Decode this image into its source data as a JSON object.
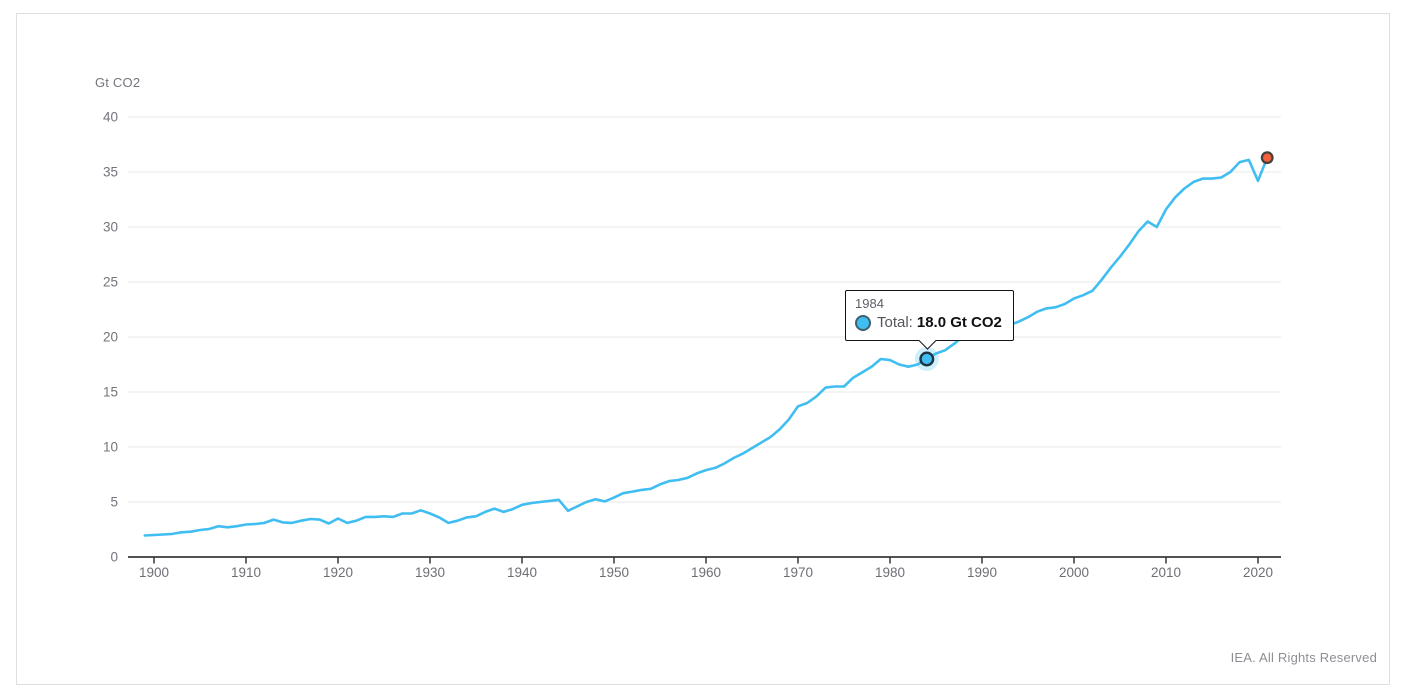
{
  "page": {
    "footer": "IEA. All Rights Reserved"
  },
  "tooltip": {
    "year_label": "1984",
    "series_label": "Total:",
    "value_label": "18.0 Gt CO2"
  },
  "chart_data": {
    "type": "line",
    "title": "",
    "y_axis_title": "Gt CO2",
    "xlabel": "",
    "ylabel": "Gt CO2",
    "ylim": [
      0,
      40
    ],
    "xlim": [
      1899,
      2022
    ],
    "grid": "horizontal",
    "legend_position": "none",
    "y_ticks": [
      0,
      5,
      10,
      15,
      20,
      25,
      30,
      35,
      40
    ],
    "x_ticks": [
      1900,
      1910,
      1920,
      1930,
      1940,
      1950,
      1960,
      1970,
      1980,
      1990,
      2000,
      2010,
      2020
    ],
    "series_name": "Total",
    "line_color": "#41BEF1",
    "highlight_marker_color": "#41BEF1",
    "highlight_ring_color": "#1f3440",
    "endpoint_color": "#F4603C",
    "endpoint_ring_color": "#46403c",
    "highlight": {
      "year": 1984,
      "value": 18.0
    },
    "years": [
      1899,
      1900,
      1901,
      1902,
      1903,
      1904,
      1905,
      1906,
      1907,
      1908,
      1909,
      1910,
      1911,
      1912,
      1913,
      1914,
      1915,
      1916,
      1917,
      1918,
      1919,
      1920,
      1921,
      1922,
      1923,
      1924,
      1925,
      1926,
      1927,
      1928,
      1929,
      1930,
      1931,
      1932,
      1933,
      1934,
      1935,
      1936,
      1937,
      1938,
      1939,
      1940,
      1941,
      1942,
      1943,
      1944,
      1945,
      1946,
      1947,
      1948,
      1949,
      1950,
      1951,
      1952,
      1953,
      1954,
      1955,
      1956,
      1957,
      1958,
      1959,
      1960,
      1961,
      1962,
      1963,
      1964,
      1965,
      1966,
      1967,
      1968,
      1969,
      1970,
      1971,
      1972,
      1973,
      1974,
      1975,
      1976,
      1977,
      1978,
      1979,
      1980,
      1981,
      1982,
      1983,
      1984,
      1985,
      1986,
      1987,
      1988,
      1989,
      1990,
      1991,
      1992,
      1993,
      1994,
      1995,
      1996,
      1997,
      1998,
      1999,
      2000,
      2001,
      2002,
      2003,
      2004,
      2005,
      2006,
      2007,
      2008,
      2009,
      2010,
      2011,
      2012,
      2013,
      2014,
      2015,
      2016,
      2017,
      2018,
      2019,
      2020,
      2021
    ],
    "values": [
      1.95,
      2.0,
      2.05,
      2.1,
      2.25,
      2.3,
      2.45,
      2.55,
      2.8,
      2.7,
      2.8,
      2.95,
      3.0,
      3.1,
      3.4,
      3.15,
      3.1,
      3.3,
      3.45,
      3.4,
      3.05,
      3.5,
      3.1,
      3.3,
      3.65,
      3.65,
      3.7,
      3.65,
      3.95,
      3.95,
      4.25,
      3.95,
      3.6,
      3.1,
      3.3,
      3.6,
      3.7,
      4.1,
      4.4,
      4.1,
      4.35,
      4.75,
      4.9,
      5.0,
      5.1,
      5.2,
      4.2,
      4.6,
      5.0,
      5.25,
      5.05,
      5.4,
      5.8,
      5.95,
      6.1,
      6.2,
      6.6,
      6.9,
      7.0,
      7.2,
      7.6,
      7.9,
      8.1,
      8.5,
      9.0,
      9.4,
      9.9,
      10.4,
      10.9,
      11.6,
      12.5,
      13.7,
      14.0,
      14.6,
      15.4,
      15.5,
      15.5,
      16.3,
      16.8,
      17.3,
      18.0,
      17.9,
      17.5,
      17.3,
      17.5,
      18.0,
      18.5,
      18.8,
      19.4,
      20.1,
      20.5,
      20.8,
      21.0,
      21.0,
      21.1,
      21.4,
      21.8,
      22.3,
      22.6,
      22.7,
      23.0,
      23.5,
      23.8,
      24.2,
      25.2,
      26.3,
      27.3,
      28.4,
      29.6,
      30.5,
      30.0,
      31.6,
      32.7,
      33.5,
      34.1,
      34.4,
      34.4,
      34.5,
      35.0,
      35.9,
      36.1,
      34.2,
      36.3
    ]
  }
}
